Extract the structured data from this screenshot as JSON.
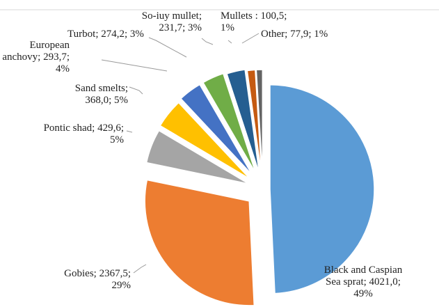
{
  "chart_data": {
    "type": "pie",
    "exploded": true,
    "slices": [
      {
        "name": "Black and Caspian Sea sprat",
        "value": 4021.0,
        "percent": 49,
        "color": "#5b9bd5",
        "label_lines": [
          "Black and Caspian",
          "Sea sprat; 4021,0;",
          "49%"
        ]
      },
      {
        "name": "Gobies",
        "value": 2367.5,
        "percent": 29,
        "color": "#ed7d31",
        "label_lines": [
          "Gobies; 2367,5;",
          "29%"
        ]
      },
      {
        "name": "Pontic shad",
        "value": 429.6,
        "percent": 5,
        "color": "#a5a5a5",
        "label_lines": [
          "Pontic shad; 429,6;",
          "5%"
        ]
      },
      {
        "name": "Sand smelts",
        "value": 368.0,
        "percent": 5,
        "color": "#ffc000",
        "label_lines": [
          "Sand smelts;",
          "368,0; 5%"
        ]
      },
      {
        "name": "European anchovy",
        "value": 293.7,
        "percent": 4,
        "color": "#4472c4",
        "label_lines": [
          "European",
          "anchovy; 293,7;",
          "4%"
        ]
      },
      {
        "name": "Turbot",
        "value": 274.2,
        "percent": 3,
        "color": "#70ad47",
        "label_lines": [
          "Turbot; 274,2; 3%"
        ]
      },
      {
        "name": "So-iuy mullet",
        "value": 231.7,
        "percent": 3,
        "color": "#255e91",
        "label_lines": [
          "So-iuy mullet;",
          "231,7; 3%"
        ]
      },
      {
        "name": "Mullets",
        "value": 100.5,
        "percent": 1,
        "color": "#c55a11",
        "label_lines": [
          "Mullets : 100,5;",
          "1%"
        ]
      },
      {
        "name": "Other",
        "value": 77.9,
        "percent": 1,
        "color": "#636363",
        "label_lines": [
          "Other; 77,9; 1%"
        ]
      }
    ]
  }
}
